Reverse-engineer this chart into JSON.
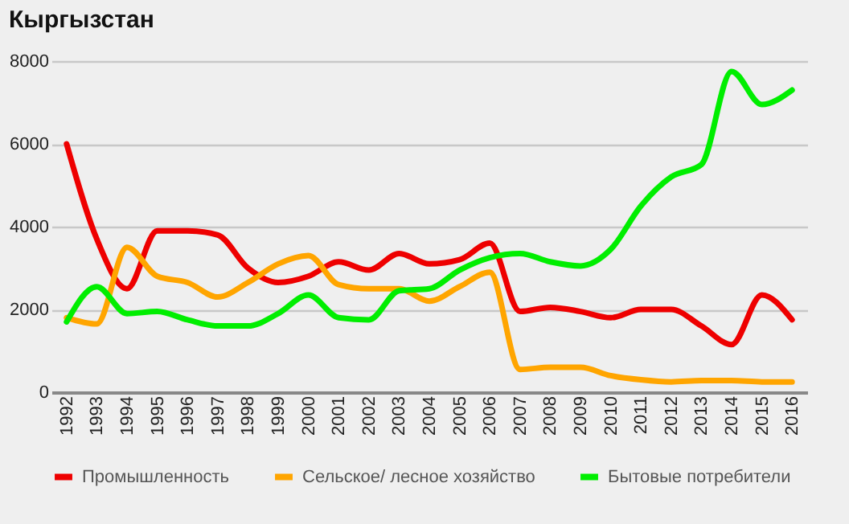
{
  "chart_data": {
    "type": "line",
    "title": "Кыргызстан",
    "categories": [
      "1992",
      "1993",
      "1994",
      "1995",
      "1996",
      "1997",
      "1998",
      "1999",
      "2000",
      "2001",
      "2002",
      "2003",
      "2004",
      "2005",
      "2006",
      "2007",
      "2008",
      "2009",
      "2010",
      "2011",
      "2012",
      "2013",
      "2014",
      "2015",
      "2016"
    ],
    "series": [
      {
        "name": "Промышленность",
        "color": "#ee0000",
        "values": [
          6000,
          3700,
          2500,
          3900,
          3900,
          3800,
          3000,
          2650,
          2800,
          3150,
          2950,
          3350,
          3100,
          3200,
          3600,
          1950,
          2050,
          1950,
          1800,
          2000,
          2000,
          1600,
          1150,
          2350,
          1750
        ]
      },
      {
        "name": "Сельское/ лесное хозяйство",
        "color": "#ffa500",
        "values": [
          1800,
          1650,
          3500,
          2800,
          2650,
          2300,
          2650,
          3100,
          3300,
          2600,
          2500,
          2500,
          2200,
          2550,
          2900,
          550,
          600,
          600,
          400,
          300,
          250,
          280,
          280,
          250,
          250
        ]
      },
      {
        "name": "Бытовые потребители",
        "color": "#00ee00",
        "values": [
          1700,
          2550,
          1900,
          1950,
          1750,
          1600,
          1600,
          1900,
          2350,
          1800,
          1750,
          2450,
          2500,
          2950,
          3250,
          3350,
          3150,
          3050,
          3450,
          4500,
          5200,
          5500,
          7750,
          6950,
          7300
        ]
      }
    ],
    "ylim": [
      0,
      8000
    ],
    "yticks": [
      0,
      2000,
      4000,
      6000,
      8000
    ],
    "grid": "y",
    "legend": "bottom",
    "marker": "none",
    "line_style": "solid"
  }
}
